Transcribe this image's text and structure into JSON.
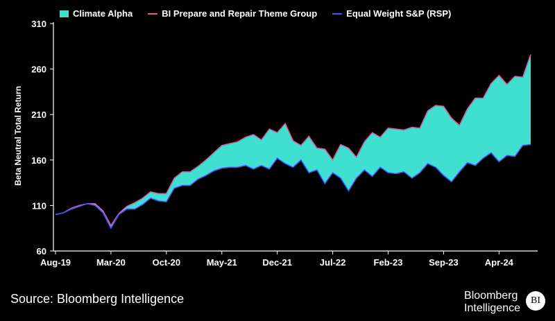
{
  "legend": {
    "climate_alpha": "Climate Alpha",
    "bi_theme": "BI Prepare and Repair Theme Group",
    "rsp": "Equal Weight S&P (RSP)"
  },
  "source": "Source: Bloomberg Intelligence",
  "brand": {
    "line1": "Bloomberg",
    "line2": "Intelligence",
    "badge": "BI"
  },
  "colors": {
    "fill": "#40E0D0",
    "bi_line": "#E75A9A",
    "rsp_line": "#2E5BFF"
  },
  "chart_data": {
    "type": "area",
    "ylabel": "Beta Neutral Total Return",
    "ylim": [
      60,
      310
    ],
    "yticks": [
      60,
      110,
      160,
      210,
      260,
      310
    ],
    "xticks": [
      "Aug-19",
      "Mar-20",
      "Oct-20",
      "May-21",
      "Dec-21",
      "Jul-22",
      "Feb-23",
      "Sep-23",
      "Apr-24"
    ],
    "x": [
      "Aug-19",
      "Sep-19",
      "Oct-19",
      "Nov-19",
      "Dec-19",
      "Jan-20",
      "Feb-20",
      "Mar-20",
      "Apr-20",
      "May-20",
      "Jun-20",
      "Jul-20",
      "Aug-20",
      "Sep-20",
      "Oct-20",
      "Nov-20",
      "Dec-20",
      "Jan-21",
      "Feb-21",
      "Mar-21",
      "Apr-21",
      "May-21",
      "Jun-21",
      "Jul-21",
      "Aug-21",
      "Sep-21",
      "Oct-21",
      "Nov-21",
      "Dec-21",
      "Jan-22",
      "Feb-22",
      "Mar-22",
      "Apr-22",
      "May-22",
      "Jun-22",
      "Jul-22",
      "Aug-22",
      "Sep-22",
      "Oct-22",
      "Nov-22",
      "Dec-22",
      "Jan-23",
      "Feb-23",
      "Mar-23",
      "Apr-23",
      "May-23",
      "Jun-23",
      "Jul-23",
      "Aug-23",
      "Sep-23",
      "Oct-23",
      "Nov-23",
      "Dec-23",
      "Jan-24",
      "Feb-24",
      "Mar-24",
      "Apr-24",
      "May-24",
      "Jun-24",
      "Jul-24",
      "Aug-24"
    ],
    "series": [
      {
        "name": "BI Prepare and Repair Theme Group",
        "values": [
          100,
          102,
          107,
          110,
          112,
          112,
          104,
          88,
          101,
          109,
          113,
          118,
          125,
          123,
          123,
          140,
          147,
          147,
          153,
          160,
          168,
          176,
          178,
          180,
          185,
          188,
          182,
          194,
          190,
          200,
          181,
          176,
          186,
          173,
          172,
          160,
          177,
          173,
          163,
          180,
          190,
          185,
          195,
          194,
          193,
          196,
          195,
          214,
          220,
          219,
          206,
          198,
          216,
          228,
          228,
          244,
          253,
          243,
          252,
          251,
          276
        ]
      },
      {
        "name": "Equal Weight S&P (RSP)",
        "values": [
          100,
          102,
          106,
          109,
          112,
          110,
          102,
          85,
          100,
          106,
          106,
          111,
          118,
          115,
          114,
          129,
          132,
          132,
          139,
          143,
          148,
          151,
          152,
          152,
          154,
          150,
          154,
          150,
          162,
          156,
          152,
          160,
          146,
          149,
          134,
          146,
          140,
          126,
          140,
          149,
          142,
          152,
          146,
          145,
          147,
          140,
          146,
          156,
          152,
          143,
          136,
          147,
          157,
          154,
          162,
          168,
          158,
          165,
          164,
          176,
          177
        ]
      }
    ]
  }
}
